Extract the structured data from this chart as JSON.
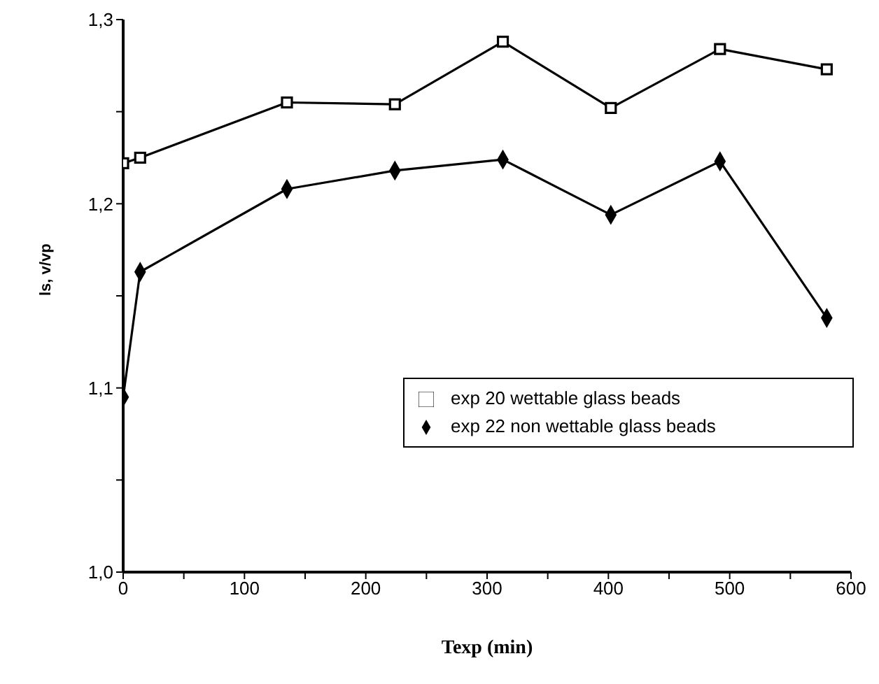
{
  "chart_data": {
    "type": "line",
    "xlabel": "Texp (min)",
    "ylabel": "ls,   v/vp",
    "xlim": [
      0,
      600
    ],
    "xticks": [
      0,
      {
        "value": 50,
        "label": null
      },
      100,
      {
        "value": 150,
        "label": null
      },
      200,
      {
        "value": 250,
        "label": null
      },
      300,
      {
        "value": 350,
        "label": null
      },
      400,
      {
        "value": 450,
        "label": null
      },
      500,
      {
        "value": 550,
        "label": null
      },
      600
    ],
    "ylim": [
      1.0,
      1.3
    ],
    "yticks": [
      {
        "value": 1.0,
        "label": "1,0"
      },
      {
        "value": 1.05,
        "label": null
      },
      {
        "value": 1.1,
        "label": "1,1"
      },
      {
        "value": 1.15,
        "label": null
      },
      {
        "value": 1.2,
        "label": "1,2"
      },
      {
        "value": 1.25,
        "label": null
      },
      {
        "value": 1.3,
        "label": "1,3"
      }
    ],
    "grid": false,
    "legend": "bottom right",
    "series": [
      {
        "name": "exp 20 wettable glass beads",
        "color": "#000000",
        "marker": "square",
        "x": [
          0,
          14,
          135,
          224,
          313,
          402,
          492,
          580
        ],
        "values": [
          1.222,
          1.225,
          1.255,
          1.254,
          1.288,
          1.252,
          1.284,
          1.273
        ]
      },
      {
        "name": "exp 22 non wettable glass beads",
        "color": "#000000",
        "marker": "diamond",
        "x": [
          0,
          14,
          135,
          224,
          313,
          402,
          492,
          580
        ],
        "values": [
          1.095,
          1.163,
          1.208,
          1.218,
          1.224,
          1.194,
          1.223,
          1.138
        ]
      }
    ]
  }
}
